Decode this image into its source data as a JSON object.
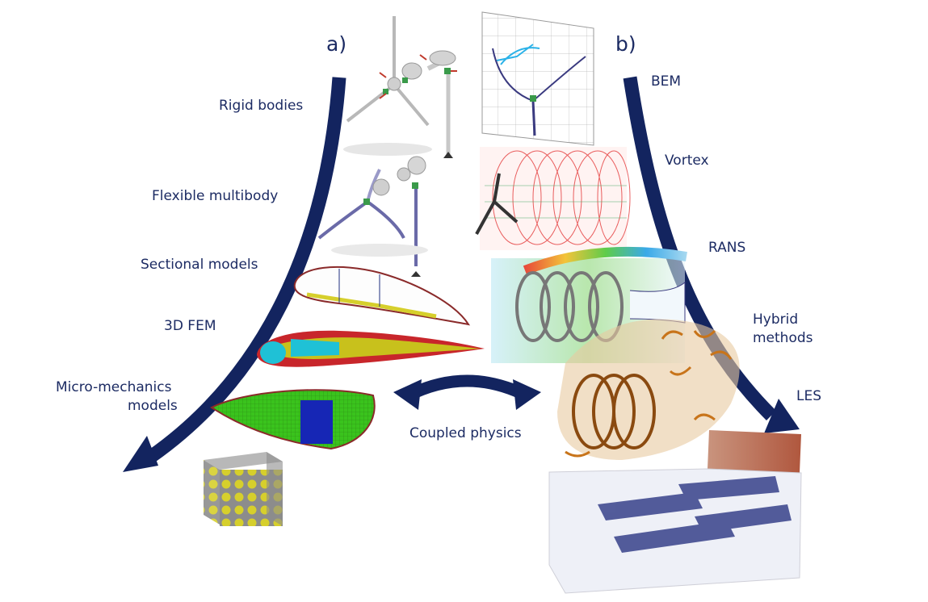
{
  "panels": {
    "a": "a)",
    "b": "b)"
  },
  "structural_models": {
    "rigid_bodies": "Rigid bodies",
    "flexible_multibody": "Flexible multibody",
    "sectional_models": "Sectional models",
    "fem_3d": "3D FEM",
    "micro_mechanics_line1": "Micro-mechanics",
    "micro_mechanics_line2": "models"
  },
  "aero_models": {
    "bem": "BEM",
    "vortex": "Vortex",
    "rans": "RANS",
    "hybrid_line1": "Hybrid",
    "hybrid_line2": "methods",
    "les": "LES"
  },
  "coupling": {
    "label": "Coupled physics"
  },
  "colors": {
    "arrow": "#13245f",
    "text": "#1c2b63",
    "fem_red": "#c8262b",
    "fem_cyan": "#1fc1d6",
    "fem_yellow": "#c8c11c",
    "mesh_green": "#39c21b",
    "mesh_blue": "#1626b5",
    "vortex_red": "#e4393a",
    "les_blue": "#2c3783"
  }
}
